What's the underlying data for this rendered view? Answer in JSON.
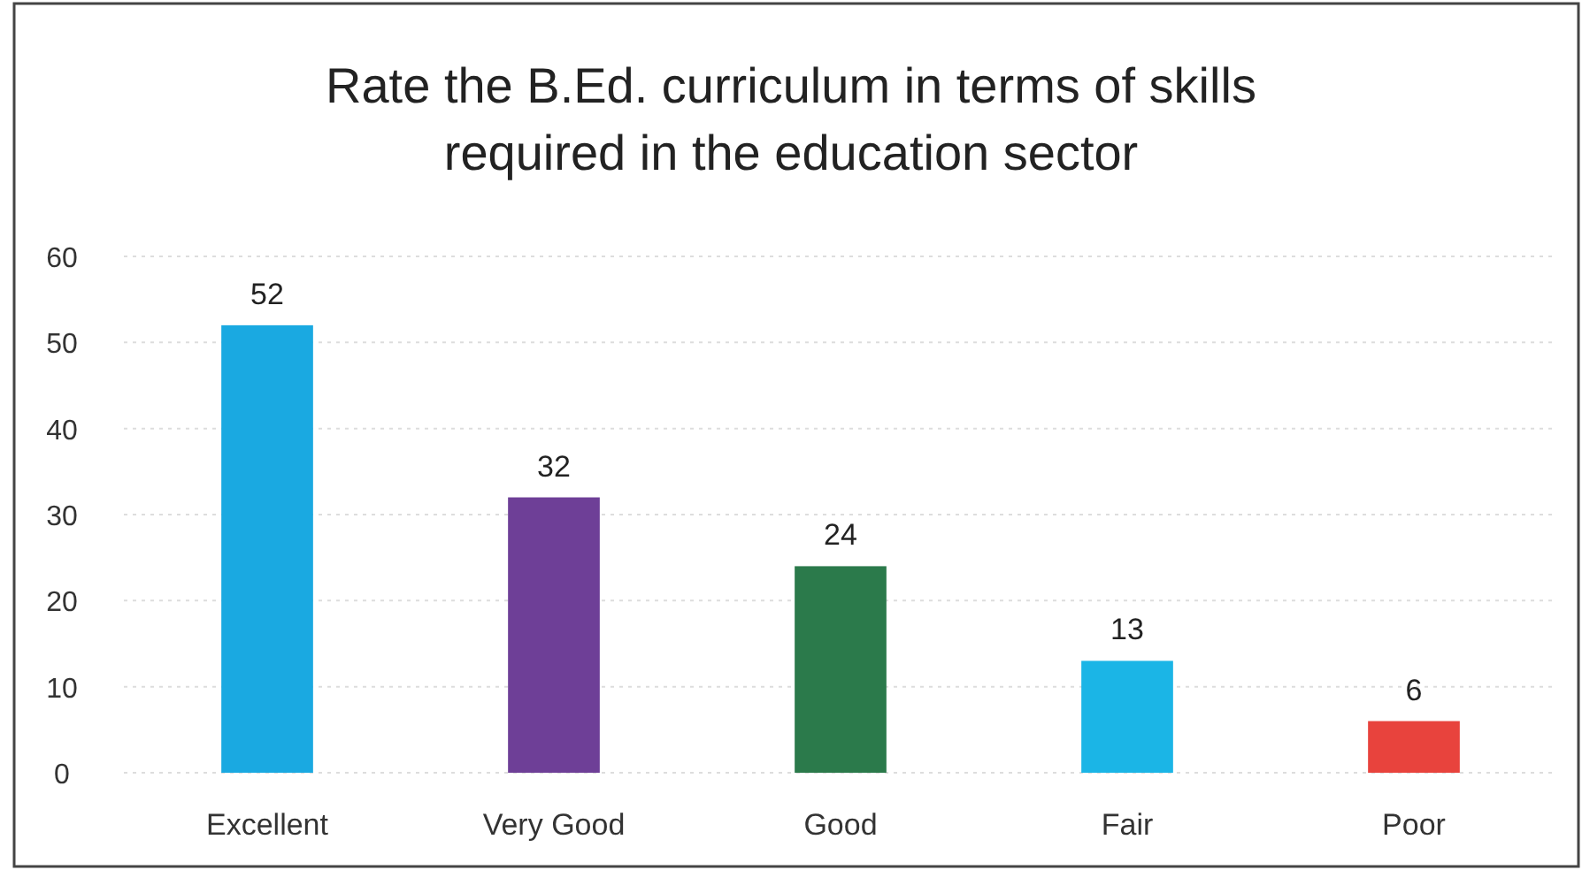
{
  "chart_data": {
    "type": "bar",
    "title": "Rate the B.Ed. curriculum in terms of skills required in the education sector",
    "categories": [
      "Excellent",
      "Very Good",
      "Good",
      "Fair",
      "Poor"
    ],
    "values": [
      52,
      32,
      24,
      13,
      6
    ],
    "colors": [
      "#1aa9e1",
      "#6e3f97",
      "#2b7a4b",
      "#1bb5e6",
      "#e8433d"
    ],
    "ylim": [
      0,
      60
    ],
    "yticks": [
      0,
      10,
      20,
      30,
      40,
      50,
      60
    ],
    "grid": "y",
    "data_labels": true
  }
}
